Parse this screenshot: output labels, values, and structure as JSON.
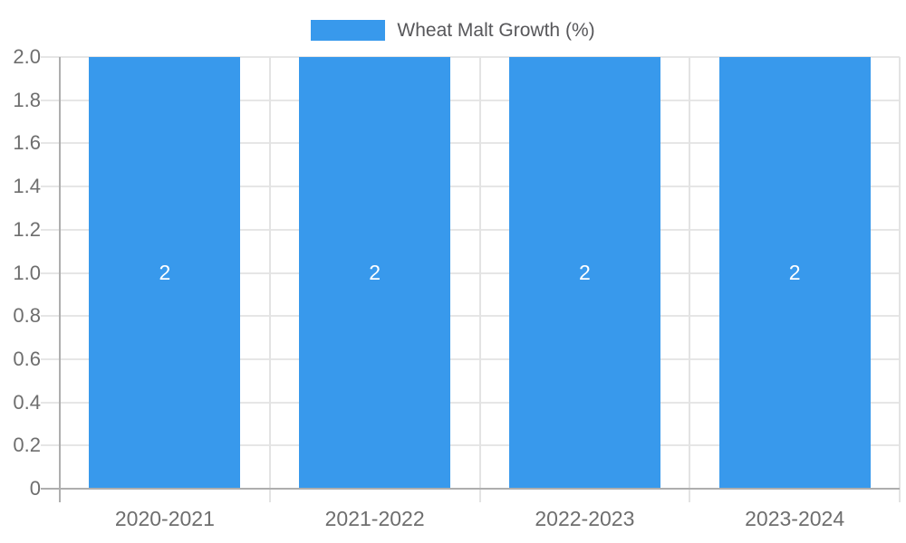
{
  "chart_data": {
    "type": "bar",
    "title": "",
    "legend": {
      "label": "Wheat Malt Growth (%)",
      "position": "top"
    },
    "categories": [
      "2020-2021",
      "2021-2022",
      "2022-2023",
      "2023-2024"
    ],
    "values": [
      2,
      2,
      2,
      2
    ],
    "bar_value_labels": [
      "2",
      "2",
      "2",
      "2"
    ],
    "xlabel": "",
    "ylabel": "",
    "ylim": [
      0,
      2
    ],
    "y_axis": {
      "ticks": [
        {
          "label": "2.0",
          "value": 2.0
        },
        {
          "label": "1.8",
          "value": 1.8
        },
        {
          "label": "1.6",
          "value": 1.6
        },
        {
          "label": "1.4",
          "value": 1.4
        },
        {
          "label": "1.2",
          "value": 1.2
        },
        {
          "label": "1.0",
          "value": 1.0
        },
        {
          "label": "0.8",
          "value": 0.8
        },
        {
          "label": "0.6",
          "value": 0.6
        },
        {
          "label": "0.4",
          "value": 0.4
        },
        {
          "label": "0.2",
          "value": 0.2
        },
        {
          "label": "0",
          "value": 0.0
        }
      ]
    },
    "grid": true,
    "legend_position": "top-center",
    "colors": {
      "bar": "#3899ec",
      "gridline": "#e6e6e6",
      "category_divider": "#e3e3e3",
      "axis_line": "#aeaeae",
      "tick_label_text": "#6e6e6e",
      "legend_text": "#57575a",
      "bar_label_text": "#ffffff",
      "background": "#ffffff"
    }
  }
}
